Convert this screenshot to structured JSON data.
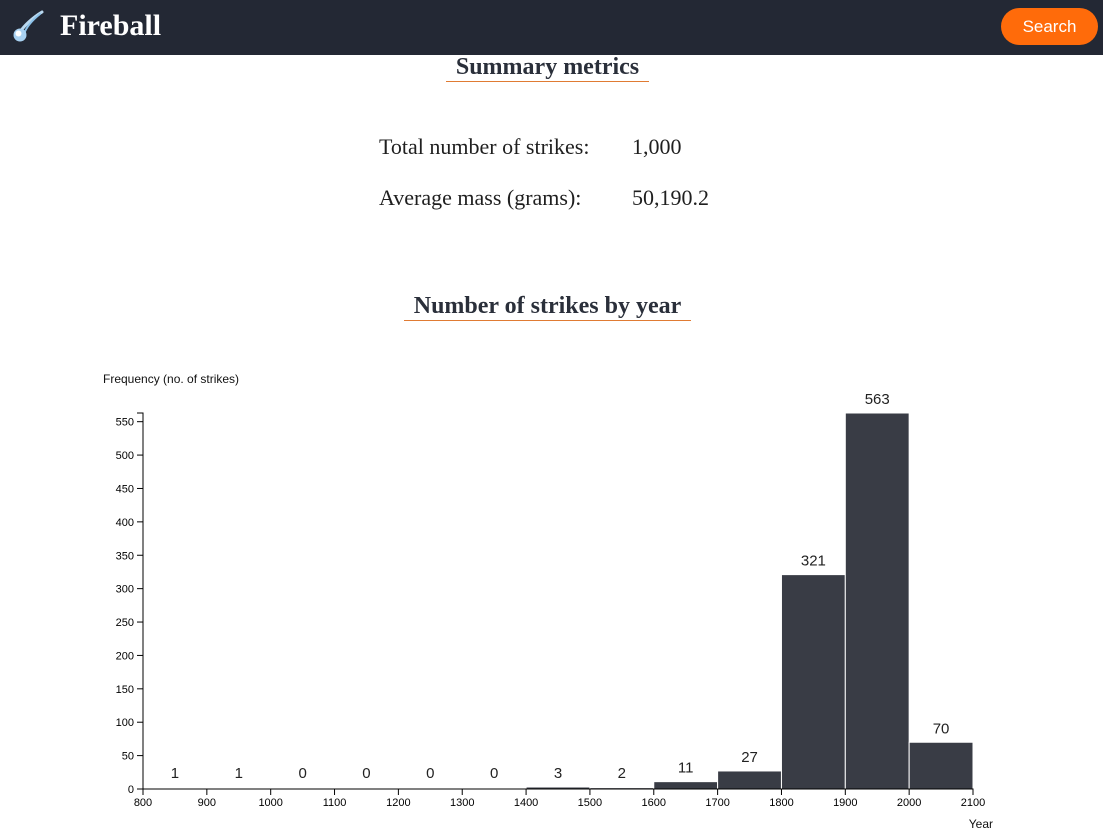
{
  "navbar": {
    "brand": "Fireball",
    "logo_icon": "comet-icon",
    "search_label": "Search",
    "colors": {
      "background": "#232834",
      "accent": "#ff6b0a"
    }
  },
  "summary": {
    "title": "Summary metrics",
    "metrics": [
      {
        "label": "Total number of strikes:",
        "value": "1,000"
      },
      {
        "label": "Average mass (grams):",
        "value": "50,190.2"
      }
    ]
  },
  "strikes_section": {
    "title": "Number of strikes by year"
  },
  "chart_data": {
    "type": "bar",
    "xlabel": "Year",
    "ylabel": "Frequency (no. of strikes)",
    "bin_edges": [
      800,
      900,
      1000,
      1100,
      1200,
      1300,
      1400,
      1500,
      1600,
      1700,
      1800,
      1900,
      2000,
      2100
    ],
    "values": [
      1,
      1,
      0,
      0,
      0,
      0,
      3,
      2,
      11,
      27,
      321,
      563,
      70
    ],
    "xlim": [
      800,
      2100
    ],
    "ylim": [
      0,
      563
    ],
    "yticks": [
      0,
      50,
      100,
      150,
      200,
      250,
      300,
      350,
      400,
      450,
      500,
      550
    ],
    "bar_color": "#393c45",
    "grid": false
  }
}
